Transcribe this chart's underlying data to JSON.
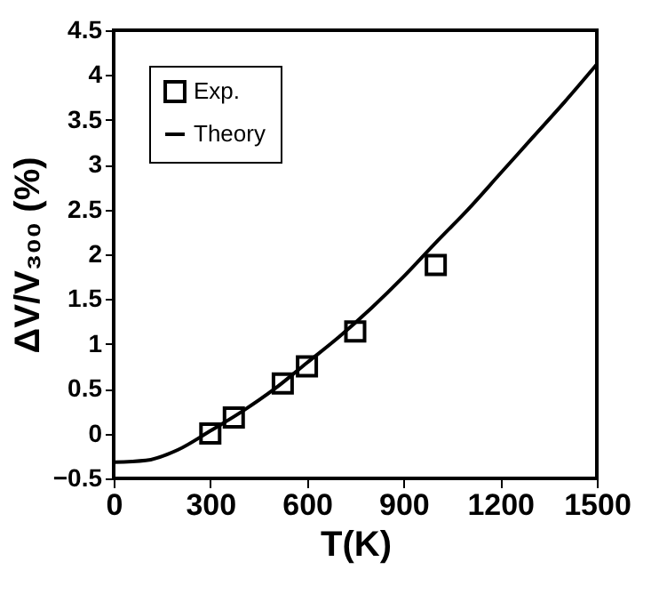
{
  "chart_data": {
    "type": "scatter",
    "xlabel": "T(K)",
    "ylabel": "ΔV/V₃₀₀ (%)",
    "xlim": [
      0,
      1500
    ],
    "xticks": [
      0,
      300,
      600,
      900,
      1200,
      1500
    ],
    "ylim": [
      -0.5,
      4.5
    ],
    "yticks": [
      -0.5,
      0,
      0.5,
      1,
      1.5,
      2,
      2.5,
      3,
      3.5,
      4,
      4.5
    ],
    "grid": false,
    "legend": "top left",
    "marker": "square",
    "line_style": "solid",
    "series": [
      {
        "name": "Exp.",
        "color": "#000000",
        "x": [
          300,
          373,
          525,
          600,
          750,
          1000
        ],
        "values": [
          0,
          0.18,
          0.56,
          0.75,
          1.14,
          1.88
        ]
      },
      {
        "name": "Theory",
        "type": "line",
        "marker": "none",
        "color": "#000000",
        "x": [
          0,
          100,
          200,
          300,
          400,
          500,
          600,
          700,
          800,
          900,
          1000,
          1100,
          1200,
          1300,
          1400,
          1500
        ],
        "values": [
          -0.32,
          -0.3,
          -0.18,
          0.03,
          0.25,
          0.5,
          0.79,
          1.08,
          1.4,
          1.75,
          2.13,
          2.5,
          2.9,
          3.3,
          3.7,
          4.12
        ]
      }
    ]
  }
}
